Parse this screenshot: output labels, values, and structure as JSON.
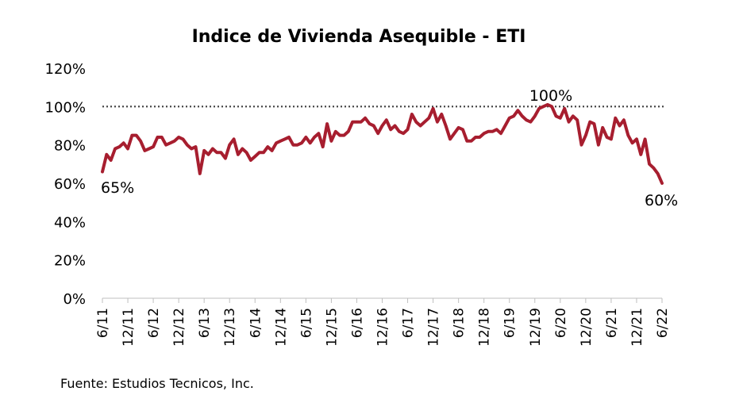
{
  "chart_data": {
    "type": "line",
    "title": "Indice de Vivienda Asequible - ETI",
    "xlabel": "",
    "ylabel": "",
    "ylim": [
      0,
      120
    ],
    "y_ticks": [
      "0%",
      "20%",
      "40%",
      "60%",
      "80%",
      "100%",
      "120%"
    ],
    "y_tick_values": [
      0,
      20,
      40,
      60,
      80,
      100,
      120
    ],
    "x_tick_labels": [
      "6/11",
      "12/11",
      "6/12",
      "12/12",
      "6/13",
      "12/13",
      "6/14",
      "12/14",
      "6/15",
      "12/15",
      "6/16",
      "12/16",
      "6/17",
      "12/17",
      "6/18",
      "12/18",
      "6/19",
      "12/19",
      "6/20",
      "12/20",
      "6/21",
      "12/21",
      "6/22"
    ],
    "reference_line": 100,
    "grid": false,
    "series": [
      {
        "color": "#a71e2f",
        "values": [
          66,
          75,
          72,
          78,
          79,
          81,
          78,
          85,
          85,
          82,
          77,
          78,
          79,
          84,
          84,
          80,
          81,
          82,
          84,
          83,
          80,
          78,
          79,
          65,
          77,
          75,
          78,
          76,
          76,
          73,
          80,
          83,
          75,
          78,
          76,
          72,
          74,
          76,
          76,
          79,
          77,
          81,
          82,
          83,
          84,
          80,
          80,
          81,
          84,
          81,
          84,
          86,
          79,
          91,
          82,
          87,
          85,
          85,
          87,
          92,
          92,
          92,
          94,
          91,
          90,
          86,
          90,
          93,
          88,
          90,
          87,
          86,
          88,
          96,
          92,
          90,
          92,
          94,
          99,
          92,
          96,
          90,
          83,
          86,
          89,
          88,
          82,
          82,
          84,
          84,
          86,
          87,
          87,
          88,
          86,
          90,
          94,
          95,
          98,
          95,
          93,
          92,
          95,
          99,
          100,
          101,
          100,
          95,
          94,
          99,
          92,
          95,
          93,
          80,
          85,
          92,
          91,
          80,
          89,
          84,
          83,
          94,
          90,
          93,
          85,
          81,
          83,
          75,
          83,
          70,
          68,
          65,
          60
        ]
      }
    ],
    "annotations": [
      {
        "text": "65%"
      },
      {
        "text": "100%"
      },
      {
        "text": "60%"
      }
    ],
    "source": "Fuente: Estudios Tecnicos, Inc."
  }
}
